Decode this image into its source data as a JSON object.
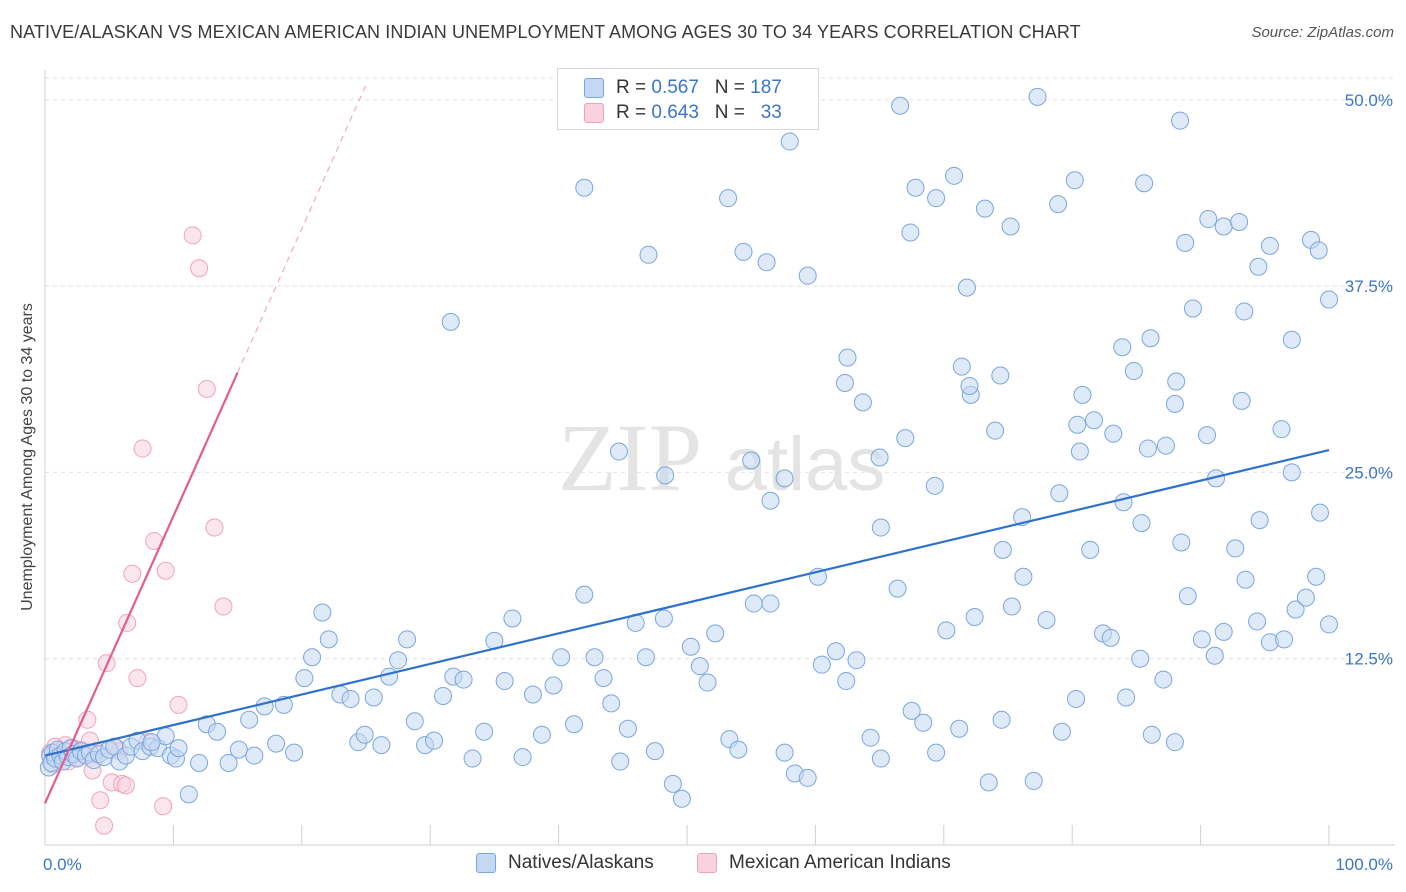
{
  "title": "NATIVE/ALASKAN VS MEXICAN AMERICAN INDIAN UNEMPLOYMENT AMONG AGES 30 TO 34 YEARS CORRELATION CHART",
  "source": "Source: ZipAtlas.com",
  "watermark": {
    "zip": "ZIP",
    "atlas": "atlas"
  },
  "legend_top": [
    {
      "r_label": "R =",
      "r_value": "0.567",
      "n_label": "N =",
      "n_value": "187",
      "color": "#7aa6e0"
    },
    {
      "r_label": "R =",
      "r_value": "0.643",
      "n_label": "N =",
      "n_value": "33",
      "color": "#f1a3bd"
    }
  ],
  "chart_data": {
    "type": "scatter",
    "ylabel": "Unemployment Among Ages 30 to 34 years",
    "xlim": [
      0,
      100
    ],
    "ylim": [
      0,
      52
    ],
    "x_tick_labels": [
      "0.0%",
      "100.0%"
    ],
    "y_ticks": [
      12.5,
      25.0,
      37.5,
      50.0
    ],
    "y_tick_labels": [
      "12.5%",
      "25.0%",
      "37.5%",
      "50.0%"
    ],
    "grid": true,
    "legend_placement": "top-center",
    "series": [
      {
        "name": "Natives/Alaskans",
        "color": "#7aa6e0",
        "trend": {
          "x": [
            0,
            100
          ],
          "y": [
            6.0,
            26.5
          ],
          "color": "#2f72c9"
        },
        "points": [
          [
            0.3,
            5.2
          ],
          [
            0.4,
            6.0
          ],
          [
            0.5,
            5.5
          ],
          [
            0.6,
            6.2
          ],
          [
            0.8,
            5.8
          ],
          [
            1.0,
            6.4
          ],
          [
            1.2,
            6.0
          ],
          [
            1.4,
            5.6
          ],
          [
            1.6,
            6.3
          ],
          [
            1.8,
            5.9
          ],
          [
            2.0,
            6.5
          ],
          [
            2.2,
            6.1
          ],
          [
            2.5,
            5.8
          ],
          [
            2.8,
            6.3
          ],
          [
            3.2,
            6.0
          ],
          [
            3.5,
            6.2
          ],
          [
            3.8,
            5.7
          ],
          [
            4.2,
            6.1
          ],
          [
            4.6,
            5.9
          ],
          [
            5.0,
            6.4
          ],
          [
            5.4,
            6.6
          ],
          [
            5.8,
            5.6
          ],
          [
            6.3,
            6.0
          ],
          [
            6.7,
            6.6
          ],
          [
            7.2,
            7.0
          ],
          [
            7.6,
            6.3
          ],
          [
            8.2,
            6.6
          ],
          [
            8.8,
            6.5
          ],
          [
            9.4,
            7.3
          ],
          [
            9.8,
            6.0
          ],
          [
            10.2,
            5.8
          ],
          [
            11.2,
            3.4
          ],
          [
            12.0,
            5.5
          ],
          [
            12.6,
            8.1
          ],
          [
            10.4,
            6.5
          ],
          [
            8.3,
            6.9
          ],
          [
            13.4,
            7.6
          ],
          [
            14.3,
            5.5
          ],
          [
            15.1,
            6.4
          ],
          [
            15.9,
            8.4
          ],
          [
            16.3,
            6.0
          ],
          [
            17.1,
            9.3
          ],
          [
            18.0,
            6.8
          ],
          [
            18.6,
            9.4
          ],
          [
            19.4,
            6.2
          ],
          [
            20.2,
            11.2
          ],
          [
            20.8,
            12.6
          ],
          [
            21.6,
            15.6
          ],
          [
            22.1,
            13.8
          ],
          [
            23.0,
            10.1
          ],
          [
            23.8,
            9.8
          ],
          [
            24.4,
            6.9
          ],
          [
            24.9,
            7.4
          ],
          [
            25.6,
            9.9
          ],
          [
            26.2,
            6.7
          ],
          [
            26.8,
            11.3
          ],
          [
            27.5,
            12.4
          ],
          [
            28.2,
            13.8
          ],
          [
            28.8,
            8.3
          ],
          [
            29.6,
            6.7
          ],
          [
            30.3,
            7.0
          ],
          [
            31.0,
            10.0
          ],
          [
            31.8,
            11.3
          ],
          [
            32.6,
            11.1
          ],
          [
            33.3,
            5.8
          ],
          [
            34.2,
            7.6
          ],
          [
            35.0,
            13.7
          ],
          [
            35.8,
            11.0
          ],
          [
            36.4,
            15.2
          ],
          [
            37.2,
            5.9
          ],
          [
            38.0,
            10.1
          ],
          [
            38.7,
            7.4
          ],
          [
            39.6,
            10.7
          ],
          [
            40.2,
            12.6
          ],
          [
            41.2,
            8.1
          ],
          [
            42.0,
            16.8
          ],
          [
            42.8,
            12.6
          ],
          [
            43.5,
            11.2
          ],
          [
            44.1,
            9.5
          ],
          [
            44.8,
            5.6
          ],
          [
            45.4,
            7.8
          ],
          [
            46.0,
            14.9
          ],
          [
            46.8,
            12.6
          ],
          [
            47.5,
            6.3
          ],
          [
            48.2,
            15.2
          ],
          [
            48.9,
            4.1
          ],
          [
            49.6,
            3.1
          ],
          [
            50.3,
            13.3
          ],
          [
            51.0,
            12.0
          ],
          [
            51.6,
            10.9
          ],
          [
            52.2,
            14.2
          ],
          [
            53.3,
            7.1
          ],
          [
            54.0,
            6.4
          ],
          [
            55.2,
            16.2
          ],
          [
            56.5,
            16.2
          ],
          [
            57.6,
            6.2
          ],
          [
            58.4,
            4.8
          ],
          [
            59.4,
            4.5
          ],
          [
            60.5,
            12.1
          ],
          [
            61.6,
            13.0
          ],
          [
            62.4,
            11.0
          ],
          [
            63.2,
            12.4
          ],
          [
            64.3,
            7.2
          ],
          [
            65.1,
            5.8
          ],
          [
            66.4,
            17.2
          ],
          [
            67.5,
            9.0
          ],
          [
            68.4,
            8.2
          ],
          [
            69.4,
            6.2
          ],
          [
            70.2,
            14.4
          ],
          [
            71.2,
            7.8
          ],
          [
            72.4,
            15.3
          ],
          [
            73.5,
            4.2
          ],
          [
            74.5,
            8.4
          ],
          [
            75.3,
            16.0
          ],
          [
            76.2,
            18.0
          ],
          [
            77.0,
            4.3
          ],
          [
            78.0,
            15.1
          ],
          [
            79.2,
            7.6
          ],
          [
            80.3,
            9.8
          ],
          [
            81.4,
            19.8
          ],
          [
            82.4,
            14.2
          ],
          [
            83.0,
            13.9
          ],
          [
            84.2,
            9.9
          ],
          [
            85.3,
            12.5
          ],
          [
            86.2,
            7.4
          ],
          [
            87.1,
            11.1
          ],
          [
            88.0,
            6.9
          ],
          [
            89.0,
            16.7
          ],
          [
            90.1,
            13.8
          ],
          [
            91.1,
            12.7
          ],
          [
            91.8,
            14.3
          ],
          [
            92.7,
            19.9
          ],
          [
            93.5,
            17.8
          ],
          [
            94.4,
            15.0
          ],
          [
            95.4,
            13.6
          ],
          [
            96.5,
            13.8
          ],
          [
            97.4,
            15.8
          ],
          [
            98.2,
            16.6
          ],
          [
            99.0,
            18.0
          ],
          [
            100.0,
            14.8
          ],
          [
            42.0,
            44.1
          ],
          [
            47.0,
            39.6
          ],
          [
            53.2,
            43.4
          ],
          [
            54.4,
            39.8
          ],
          [
            56.2,
            39.1
          ],
          [
            58.0,
            47.2
          ],
          [
            67.8,
            44.1
          ],
          [
            69.4,
            43.4
          ],
          [
            70.8,
            44.9
          ],
          [
            71.8,
            37.4
          ],
          [
            67.4,
            41.1
          ],
          [
            73.2,
            42.7
          ],
          [
            75.2,
            41.5
          ],
          [
            77.3,
            50.2
          ],
          [
            78.9,
            43.0
          ],
          [
            80.2,
            44.6
          ],
          [
            85.6,
            44.4
          ],
          [
            88.4,
            48.6
          ],
          [
            88.8,
            40.4
          ],
          [
            90.6,
            42.0
          ],
          [
            91.8,
            41.5
          ],
          [
            93.0,
            41.8
          ],
          [
            94.5,
            38.8
          ],
          [
            95.4,
            40.2
          ],
          [
            97.1,
            33.9
          ],
          [
            98.6,
            40.6
          ],
          [
            99.2,
            39.9
          ],
          [
            62.3,
            31.0
          ],
          [
            69.3,
            24.1
          ],
          [
            66.6,
            49.6
          ],
          [
            74.4,
            31.5
          ],
          [
            80.4,
            28.2
          ],
          [
            84.8,
            31.8
          ],
          [
            86.1,
            34.0
          ],
          [
            89.4,
            36.0
          ],
          [
            93.4,
            35.8
          ],
          [
            100.0,
            36.6
          ],
          [
            59.4,
            38.2
          ],
          [
            88.1,
            31.1
          ],
          [
            31.6,
            35.1
          ],
          [
            62.5,
            32.7
          ],
          [
            71.4,
            32.1
          ],
          [
            72.1,
            30.2
          ],
          [
            91.2,
            24.6
          ],
          [
            83.2,
            27.6
          ],
          [
            97.1,
            25.0
          ],
          [
            80.6,
            26.4
          ],
          [
            44.7,
            26.4
          ],
          [
            48.3,
            24.8
          ],
          [
            55.0,
            25.8
          ],
          [
            63.7,
            29.7
          ],
          [
            60.2,
            18.0
          ],
          [
            67.0,
            27.3
          ],
          [
            88.5,
            20.3
          ],
          [
            65.0,
            26.0
          ],
          [
            57.6,
            24.6
          ],
          [
            96.3,
            27.9
          ],
          [
            74.6,
            19.8
          ],
          [
            79.0,
            23.6
          ],
          [
            94.6,
            21.8
          ],
          [
            56.5,
            23.1
          ],
          [
            76.1,
            22.0
          ],
          [
            87.3,
            26.8
          ],
          [
            99.3,
            22.3
          ],
          [
            84.0,
            23.0
          ],
          [
            85.4,
            21.6
          ],
          [
            65.1,
            21.3
          ],
          [
            74.0,
            27.8
          ],
          [
            80.8,
            30.2
          ],
          [
            83.9,
            33.4
          ],
          [
            72.0,
            30.8
          ],
          [
            88.0,
            29.6
          ],
          [
            93.2,
            29.8
          ],
          [
            81.7,
            28.5
          ],
          [
            85.9,
            26.6
          ],
          [
            90.5,
            27.5
          ]
        ]
      },
      {
        "name": "Mexican American Indians",
        "color": "#f1a3bd",
        "trend": {
          "x": [
            0,
            15
          ],
          "y": [
            2.8,
            31.7
          ],
          "dashed_x": [
            15,
            25
          ],
          "dashed_y": [
            31.7,
            51.0
          ],
          "color": "#e35d8f"
        },
        "points": [
          [
            0.4,
            6.2
          ],
          [
            0.6,
            5.4
          ],
          [
            0.8,
            6.6
          ],
          [
            1.0,
            5.8
          ],
          [
            1.2,
            6.3
          ],
          [
            1.4,
            6.0
          ],
          [
            1.6,
            6.7
          ],
          [
            1.8,
            5.6
          ],
          [
            2.0,
            6.2
          ],
          [
            2.2,
            6.5
          ],
          [
            2.5,
            5.9
          ],
          [
            2.8,
            6.4
          ],
          [
            3.0,
            6.1
          ],
          [
            3.3,
            8.4
          ],
          [
            3.5,
            7.0
          ],
          [
            3.7,
            5.0
          ],
          [
            4.0,
            6.3
          ],
          [
            4.3,
            3.0
          ],
          [
            4.6,
            1.3
          ],
          [
            4.8,
            12.2
          ],
          [
            5.2,
            4.2
          ],
          [
            5.6,
            6.5
          ],
          [
            6.0,
            4.1
          ],
          [
            6.3,
            4.0
          ],
          [
            6.8,
            18.2
          ],
          [
            7.2,
            11.2
          ],
          [
            7.6,
            26.6
          ],
          [
            8.5,
            20.4
          ],
          [
            9.2,
            2.6
          ],
          [
            10.4,
            9.4
          ],
          [
            11.5,
            40.9
          ],
          [
            12.0,
            38.7
          ],
          [
            12.6,
            30.6
          ],
          [
            13.2,
            21.3
          ],
          [
            13.9,
            16.0
          ],
          [
            9.4,
            18.4
          ],
          [
            8.0,
            6.9
          ],
          [
            5.8,
            6.3
          ],
          [
            6.4,
            14.9
          ]
        ]
      }
    ]
  }
}
